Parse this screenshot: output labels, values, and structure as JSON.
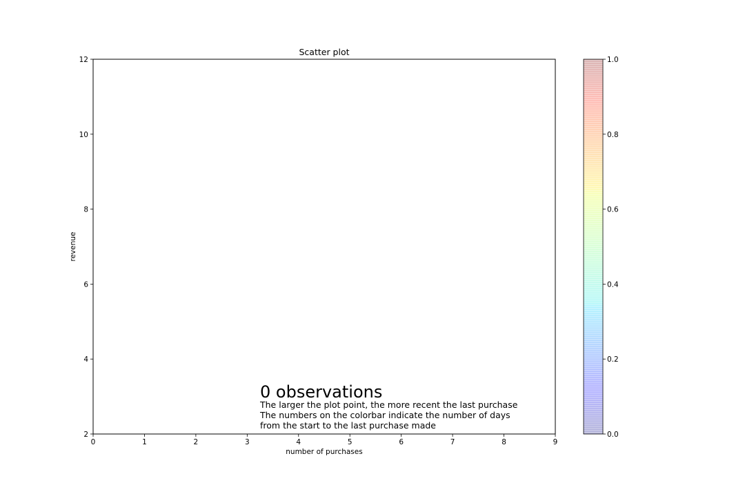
{
  "chart_data": {
    "type": "scatter",
    "title": "Scatter plot",
    "xlabel": "number of purchases",
    "ylabel": "revenue",
    "xlim": [
      0,
      9
    ],
    "ylim": [
      2,
      12
    ],
    "xticks": [
      "0",
      "1",
      "2",
      "3",
      "4",
      "5",
      "6",
      "7",
      "8",
      "9"
    ],
    "yticks": [
      "2",
      "4",
      "6",
      "8",
      "10",
      "12"
    ],
    "points": [],
    "grid": false,
    "colorbar": {
      "colormap": "jet",
      "alpha": 0.3,
      "range": [
        0.0,
        1.0
      ],
      "ticks": [
        "0.0",
        "0.2",
        "0.4",
        "0.6",
        "0.8",
        "1.0"
      ]
    },
    "annotation": {
      "heading": "0 observations",
      "lines": [
        "The larger the plot point, the more recent the last purchase",
        "The numbers on the colorbar indicate the number of days",
        "from the start to the last purchase made"
      ]
    }
  }
}
